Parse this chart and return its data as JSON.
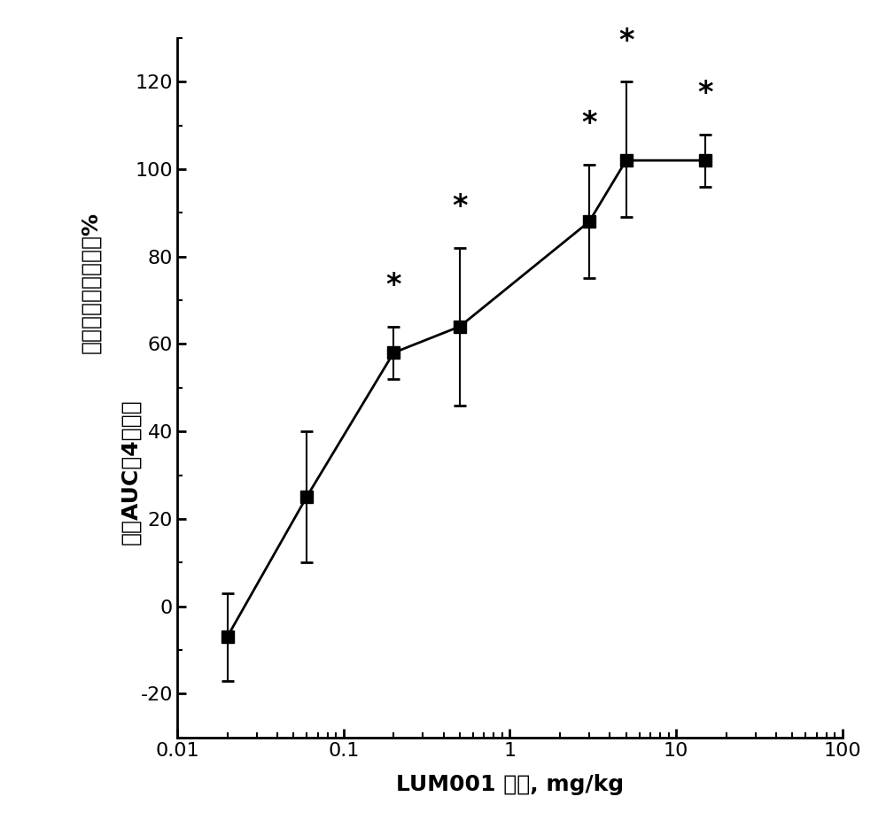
{
  "x": [
    0.02,
    0.06,
    0.2,
    0.5,
    3.0,
    5.0,
    15.0
  ],
  "y": [
    -7,
    25,
    58,
    64,
    88,
    102,
    102
  ],
  "yerr_low": [
    10,
    15,
    6,
    18,
    13,
    13,
    6
  ],
  "yerr_high": [
    10,
    15,
    6,
    18,
    13,
    18,
    6
  ],
  "significant": [
    false,
    false,
    true,
    true,
    true,
    true,
    true
  ],
  "xlabel": "LUM001 剂量, mg/kg",
  "ylabel_line1": "餐后血清总胆汁酸的%",
  "ylabel_line2": "抑制AUC（4小时）",
  "xlim": [
    0.01,
    100
  ],
  "ylim": [
    -30,
    130
  ],
  "yticks": [
    -20,
    0,
    20,
    40,
    60,
    80,
    100,
    120
  ],
  "marker_color": "#000000",
  "line_color": "#000000",
  "marker_size": 10,
  "line_width": 2,
  "background_color": "#ffffff",
  "axis_label_fontsize": 18,
  "tick_fontsize": 16,
  "star_fontsize": 24,
  "ylabel_fontsize": 18
}
